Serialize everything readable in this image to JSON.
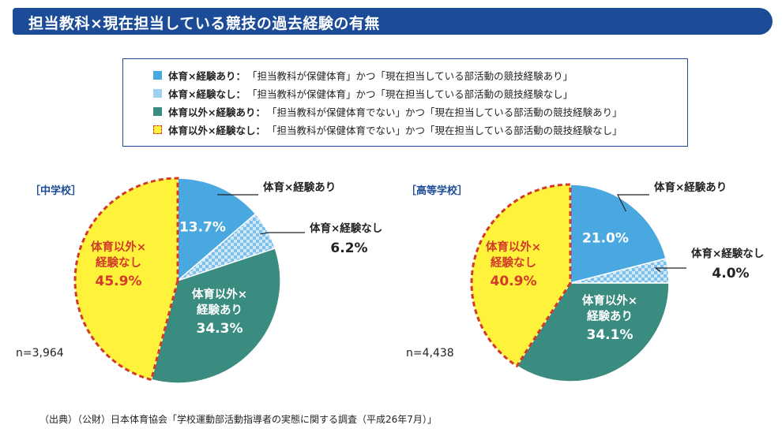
{
  "title": "担当教科×現在担当している競技の過去経験の有無",
  "legend": [
    {
      "label": "体育×経験あり：",
      "desc": "「担当教科が保健体育」かつ「現在担当している部活動の競技経験あり」",
      "color": "#4aa8e0"
    },
    {
      "label": "体育×経験なし：",
      "desc": "「担当教科が保健体育」かつ「現在担当している部活動の競技経験なし」",
      "color": "#9fd0f0"
    },
    {
      "label": "体育以外×経験あり：",
      "desc": "「担当教科が保健体育でない」かつ「現在担当している部活動の競技経験あり」",
      "color": "#3a8c80"
    },
    {
      "label": "体育以外×経験なし：",
      "desc": "「担当教科が保健体育でない」かつ「現在担当している部活動の競技経験なし」",
      "color": "#fff23a"
    }
  ],
  "chart_data": [
    {
      "type": "pie",
      "title": "［中学校］",
      "n_label": "n=3,964",
      "slices": [
        {
          "name": "体育×経験あり",
          "value": 13.7,
          "value_label": "13.7%",
          "color": "#4aa8e0"
        },
        {
          "name": "体育×経験なし",
          "value": 6.2,
          "value_label": "6.2%",
          "color": "#9fd0f0"
        },
        {
          "name": "体育以外×経験あり",
          "value": 34.3,
          "value_label": "34.3%",
          "color": "#3a8c80"
        },
        {
          "name": "体育以外×経験なし",
          "value": 45.9,
          "value_label": "45.9%",
          "color": "#fff23a"
        }
      ]
    },
    {
      "type": "pie",
      "title": "［高等学校］",
      "n_label": "n=4,438",
      "slices": [
        {
          "name": "体育×経験あり",
          "value": 21.0,
          "value_label": "21.0%",
          "color": "#4aa8e0"
        },
        {
          "name": "体育×経験なし",
          "value": 4.0,
          "value_label": "4.0%",
          "color": "#9fd0f0"
        },
        {
          "name": "体育以外×経験あり",
          "value": 34.1,
          "value_label": "34.1%",
          "color": "#3a8c80"
        },
        {
          "name": "体育以外×経験なし",
          "value": 40.9,
          "value_label": "40.9%",
          "color": "#fff23a"
        }
      ]
    }
  ],
  "footer": "（出典）（公財）日本体育協会「学校運動部活動指導者の実態に関する調査（平成26年7月）」"
}
